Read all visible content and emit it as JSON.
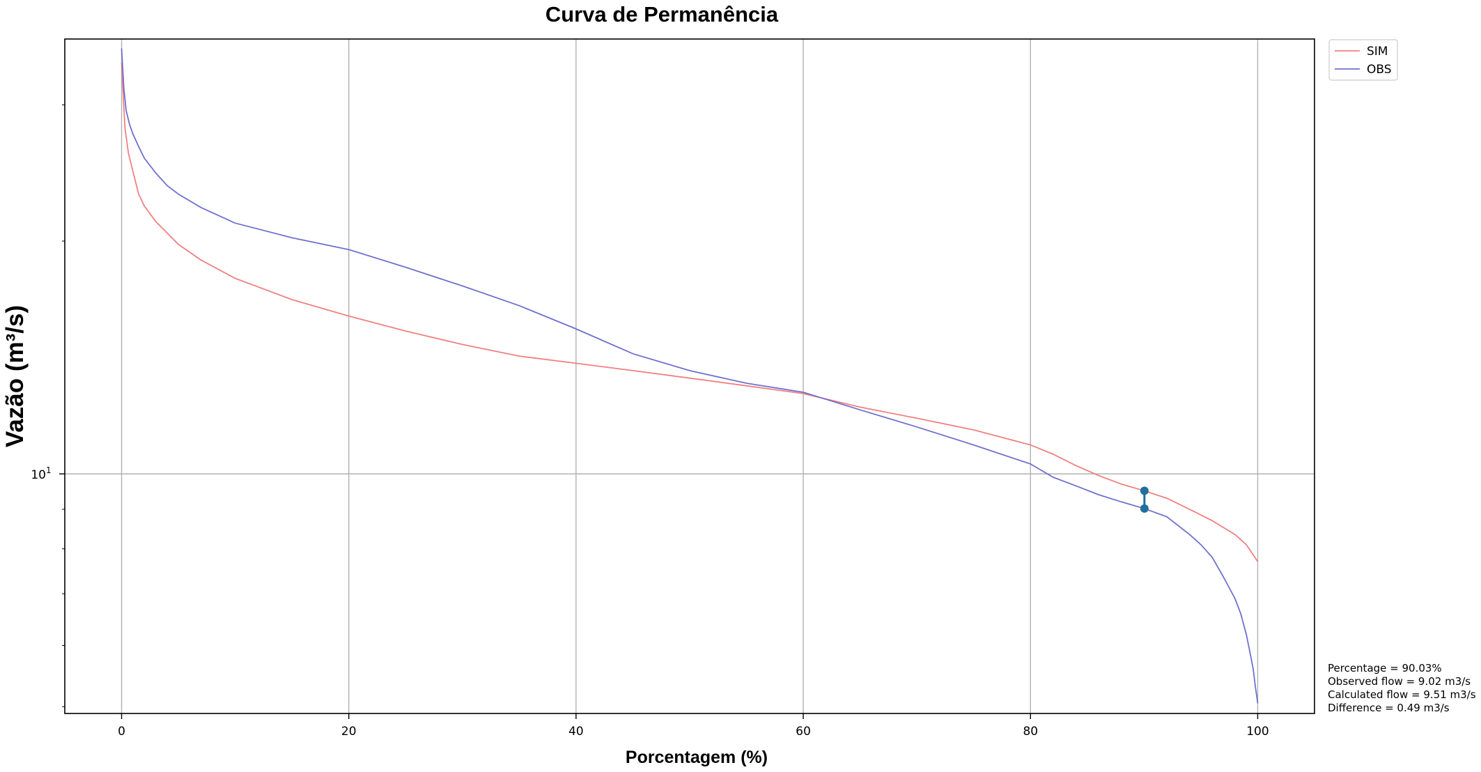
{
  "chart_data": {
    "type": "line",
    "title": "Curva de Permanência",
    "xlabel": "Porcentagem (%)",
    "ylabel": "Vazão (m³/s)",
    "xlim": [
      -5,
      105
    ],
    "ylim": [
      4.9,
      36.5
    ],
    "y_scale": "log",
    "x_ticks": [
      0,
      20,
      40,
      60,
      80,
      100
    ],
    "y_tick_labels": [
      {
        "value": 10,
        "base": "10",
        "exp": "1"
      }
    ],
    "grid": true,
    "legend_position": "outside-top-right",
    "series": [
      {
        "name": "SIM",
        "color": "#f08080",
        "x": [
          0,
          0.3,
          0.6,
          1,
          1.5,
          2,
          3,
          4,
          5,
          7,
          10,
          15,
          20,
          25,
          30,
          35,
          40,
          45,
          50,
          55,
          60,
          65,
          70,
          75,
          80,
          82,
          84,
          86,
          88,
          90,
          92,
          94,
          96,
          98,
          99,
          99.5,
          100
        ],
        "values": [
          34.0,
          28.0,
          26.0,
          24.6,
          23.0,
          22.2,
          21.2,
          20.5,
          19.8,
          18.9,
          17.9,
          16.8,
          16.0,
          15.3,
          14.7,
          14.2,
          13.9,
          13.6,
          13.3,
          13.0,
          12.7,
          12.2,
          11.8,
          11.4,
          10.9,
          10.6,
          10.25,
          9.95,
          9.7,
          9.51,
          9.3,
          9.0,
          8.7,
          8.35,
          8.1,
          7.9,
          7.7
        ]
      },
      {
        "name": "OBS",
        "color": "#6f6fd0",
        "x": [
          0,
          0.2,
          0.4,
          0.7,
          1,
          1.5,
          2,
          3,
          4,
          5,
          7,
          10,
          15,
          20,
          25,
          30,
          35,
          40,
          45,
          50,
          55,
          60,
          65,
          70,
          75,
          80,
          82,
          84,
          86,
          88,
          90,
          92,
          94,
          95,
          96,
          97,
          98,
          98.5,
          99,
          99.3,
          99.6,
          99.8,
          100
        ],
        "values": [
          35.5,
          31.5,
          29.5,
          28.3,
          27.5,
          26.5,
          25.6,
          24.5,
          23.6,
          23.0,
          22.1,
          21.1,
          20.2,
          19.5,
          18.5,
          17.5,
          16.5,
          15.4,
          14.3,
          13.6,
          13.1,
          12.75,
          12.1,
          11.5,
          10.9,
          10.3,
          9.9,
          9.65,
          9.4,
          9.2,
          9.02,
          8.8,
          8.35,
          8.1,
          7.8,
          7.35,
          6.9,
          6.6,
          6.2,
          5.9,
          5.6,
          5.3,
          5.05
        ]
      }
    ],
    "highlight_points": [
      {
        "x": 90.03,
        "y": 9.51
      },
      {
        "x": 90.03,
        "y": 9.02
      }
    ],
    "highlight_color": "#1f6f9f",
    "annotations": [
      "Percentage = 90.03%",
      "Observed flow = 9.02 m3/s",
      "Calculated flow = 9.51 m3/s",
      "Difference = 0.49 m3/s"
    ]
  }
}
